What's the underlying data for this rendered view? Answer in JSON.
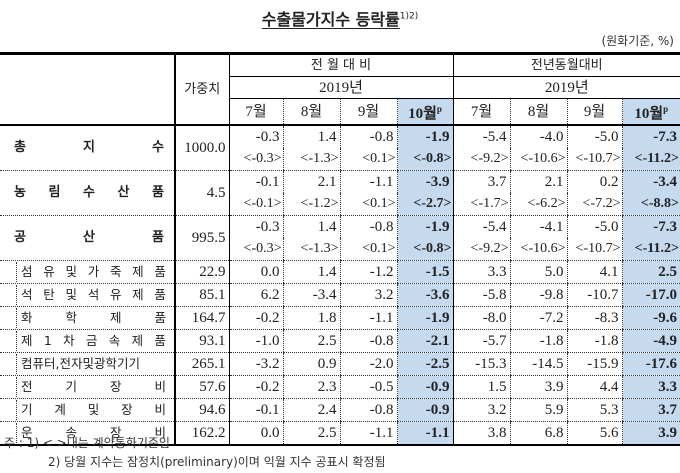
{
  "title": "수출물가지수 등락률",
  "title_sup": "1)2)",
  "unit": "(원화기준, %)",
  "header": {
    "weight": "가중치",
    "group1": "전 월 대 비",
    "group2": "전년동월대비",
    "year1": "2019년",
    "year2": "2019년",
    "months": [
      "7월",
      "8월",
      "9월",
      "10월",
      "7월",
      "8월",
      "9월",
      "10월"
    ],
    "prelim": "p"
  },
  "main_rows": [
    {
      "label": [
        "총",
        "지",
        "수"
      ],
      "weight": "1000.0",
      "values": [
        "-0.3",
        "1.4",
        "-0.8",
        "-1.9",
        "-5.4",
        "-4.0",
        "-5.0",
        "-7.3"
      ],
      "contract": [
        "<-0.3>",
        "<-1.3>",
        "<0.1>",
        "<-0.8>",
        "<-9.2>",
        "<-10.6>",
        "<-10.7>",
        "<-11.2>"
      ]
    },
    {
      "label": [
        "농",
        "림",
        "수",
        "산",
        "품"
      ],
      "weight": "4.5",
      "values": [
        "-0.1",
        "2.1",
        "-1.1",
        "-3.9",
        "3.7",
        "2.1",
        "0.2",
        "-3.4"
      ],
      "contract": [
        "<-0.1>",
        "<-1.2>",
        "<0.1>",
        "<-2.7>",
        "<-1.7>",
        "<-6.2>",
        "<-7.2>",
        "<-8.8>"
      ]
    },
    {
      "label": [
        "공",
        "산",
        "품"
      ],
      "weight": "995.5",
      "values": [
        "-0.3",
        "1.4",
        "-0.8",
        "-1.9",
        "-5.4",
        "-4.1",
        "-5.0",
        "-7.3"
      ],
      "contract": [
        "<-0.3>",
        "<-1.3>",
        "<0.1>",
        "<-0.8>",
        "<-9.2>",
        "<-10.6>",
        "<-10.7>",
        "<-11.2>"
      ]
    }
  ],
  "sub_rows": [
    {
      "label": [
        "섬",
        "유",
        "및",
        "가",
        "죽",
        "제",
        "품"
      ],
      "weight": "22.9",
      "values": [
        "0.0",
        "1.4",
        "-1.2",
        "-1.5",
        "3.3",
        "5.0",
        "4.1",
        "2.5"
      ]
    },
    {
      "label": [
        "석",
        "탄",
        "및",
        "석",
        "유",
        "제",
        "품"
      ],
      "weight": "85.1",
      "values": [
        "6.2",
        "-3.4",
        "3.2",
        "-3.6",
        "-5.8",
        "-9.8",
        "-10.7",
        "-17.0"
      ]
    },
    {
      "label": [
        "화",
        "학",
        "제",
        "품"
      ],
      "weight": "164.7",
      "values": [
        "-0.2",
        "1.8",
        "-1.1",
        "-1.9",
        "-8.0",
        "-7.2",
        "-8.3",
        "-9.6"
      ]
    },
    {
      "label": [
        "제",
        "1",
        "차",
        "금",
        "속",
        "제",
        "품"
      ],
      "weight": "93.1",
      "values": [
        "-1.0",
        "2.5",
        "-0.8",
        "-2.1",
        "-5.7",
        "-1.8",
        "-1.8",
        "-4.9"
      ]
    },
    {
      "label": [
        "컴퓨터,전자및광학기기"
      ],
      "weight": "265.1",
      "values": [
        "-3.2",
        "0.9",
        "-2.0",
        "-2.5",
        "-15.3",
        "-14.5",
        "-15.9",
        "-17.6"
      ]
    },
    {
      "label": [
        "전",
        "기",
        "장",
        "비"
      ],
      "weight": "57.6",
      "values": [
        "-0.2",
        "2.3",
        "-0.5",
        "-0.9",
        "1.5",
        "3.9",
        "4.4",
        "3.3"
      ]
    },
    {
      "label": [
        "기",
        "계",
        "및",
        "장",
        "비"
      ],
      "weight": "94.6",
      "values": [
        "-0.1",
        "2.4",
        "-0.8",
        "-0.9",
        "3.2",
        "5.9",
        "5.3",
        "3.7"
      ]
    },
    {
      "label": [
        "운",
        "송",
        "장",
        "비"
      ],
      "weight": "162.2",
      "values": [
        "0.0",
        "2.5",
        "-1.1",
        "-1.1",
        "3.8",
        "6.8",
        "5.6",
        "3.9"
      ]
    }
  ],
  "notes": [
    "주 :  1) < >내는 계약통화기준임",
    "2) 당월 지수는 잠정치(preliminary)이며 익월 지수 공표시 확정됨"
  ],
  "colors": {
    "highlight": "#c5d9ef"
  }
}
